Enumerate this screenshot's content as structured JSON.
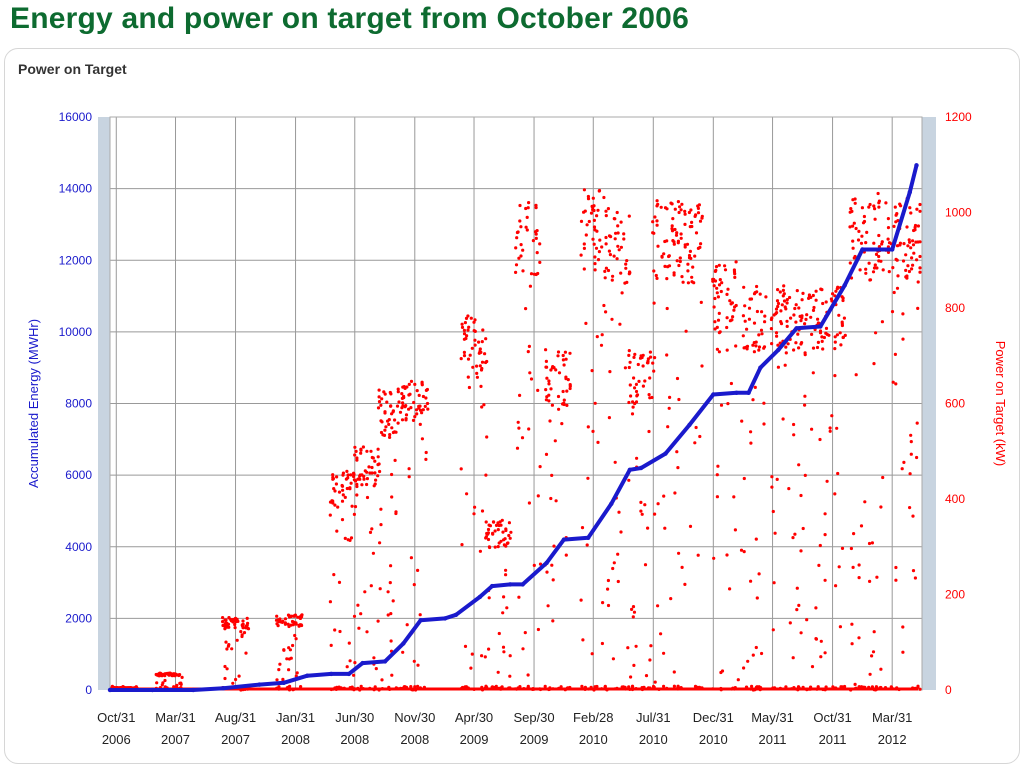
{
  "slide_title": "Energy and power on target from October 2006",
  "panel_title": "Power on Target",
  "colors": {
    "title_green": "#0d6b30",
    "energy_blue": "#1a1acc",
    "power_red": "#ff0000",
    "axis_strip": "#c8d4e0",
    "grid": "#999999"
  },
  "chart_data": {
    "type": "line",
    "ylabel": "Accumulated Energy (MWHr)",
    "y2label": "Power on Target (kW)",
    "ylim": [
      0,
      16000
    ],
    "y2lim": [
      0,
      1200
    ],
    "y_ticks": [
      "16000",
      "14000",
      "12000",
      "10000",
      "8000",
      "6000",
      "4000",
      "2000",
      "0"
    ],
    "y2_ticks": [
      "1200",
      "1000",
      "800",
      "600",
      "400",
      "200",
      "0"
    ],
    "x_ticks": [
      [
        "Oct/31",
        "2006"
      ],
      [
        "Mar/31",
        "2007"
      ],
      [
        "Aug/31",
        "2007"
      ],
      [
        "Jan/31",
        "2008"
      ],
      [
        "Jun/30",
        "2008"
      ],
      [
        "Nov/30",
        "2008"
      ],
      [
        "Apr/30",
        "2009"
      ],
      [
        "Sep/30",
        "2009"
      ],
      [
        "Feb/28",
        "2010"
      ],
      [
        "Jul/31",
        "2010"
      ],
      [
        "Dec/31",
        "2010"
      ],
      [
        "May/31",
        "2011"
      ],
      [
        "Oct/31",
        "2011"
      ],
      [
        "Mar/31",
        "2012"
      ]
    ],
    "x_tick_dates": [
      "2006-10-31",
      "2007-03-31",
      "2007-08-31",
      "2008-01-31",
      "2008-06-30",
      "2008-11-30",
      "2009-04-30",
      "2009-09-30",
      "2010-02-28",
      "2010-07-31",
      "2010-12-31",
      "2011-05-31",
      "2011-10-31",
      "2012-03-31"
    ],
    "x_range": [
      "2006-10-15",
      "2012-06-15"
    ],
    "grid": true,
    "series": [
      {
        "name": "Accumulated Energy (MWHr)",
        "axis": "left",
        "style": "line",
        "x": [
          "2006-10-15",
          "2007-01-31",
          "2007-05-15",
          "2007-07-31",
          "2007-10-31",
          "2008-01-01",
          "2008-03-01",
          "2008-05-01",
          "2008-06-15",
          "2008-07-20",
          "2008-09-15",
          "2008-11-01",
          "2008-12-15",
          "2009-02-15",
          "2009-03-15",
          "2009-05-15",
          "2009-06-15",
          "2009-07-31",
          "2009-09-01",
          "2009-11-01",
          "2009-12-15",
          "2010-02-15",
          "2010-04-15",
          "2010-06-01",
          "2010-06-30",
          "2010-08-31",
          "2010-10-31",
          "2010-12-31",
          "2011-02-28",
          "2011-03-31",
          "2011-04-30",
          "2011-06-15",
          "2011-07-31",
          "2011-09-30",
          "2011-12-01",
          "2012-01-15",
          "2012-03-31",
          "2012-05-15",
          "2012-06-01"
        ],
        "values": [
          0,
          0,
          0,
          50,
          150,
          200,
          400,
          450,
          450,
          750,
          800,
          1300,
          1950,
          2000,
          2100,
          2600,
          2900,
          2950,
          2950,
          3550,
          4200,
          4250,
          5200,
          6150,
          6200,
          6600,
          7400,
          8250,
          8300,
          8300,
          9000,
          9500,
          10100,
          10150,
          11300,
          12300,
          12300,
          13900,
          14650
        ]
      },
      {
        "name": "Power on Target (kW)",
        "axis": "right",
        "style": "scatter",
        "x": [
          "2006-11-20",
          "2007-03-15",
          "2007-08-31",
          "2008-01-15",
          "2008-05-31",
          "2008-07-31",
          "2008-09-30",
          "2008-11-30",
          "2009-04-30",
          "2009-06-30",
          "2009-09-15",
          "2009-11-30",
          "2010-02-28",
          "2010-04-30",
          "2010-06-30",
          "2010-08-31",
          "2010-10-31",
          "2011-01-31",
          "2011-04-15",
          "2011-06-30",
          "2011-08-31",
          "2011-10-31",
          "2012-01-15",
          "2012-03-15",
          "2012-05-15"
        ],
        "values": [
          5,
          35,
          150,
          155,
          450,
          500,
          620,
          640,
          770,
          350,
          1010,
          700,
          1030,
          1000,
          700,
          1010,
          1000,
          880,
          830,
          830,
          820,
          830,
          1010,
          1020,
          1010
        ]
      }
    ]
  }
}
